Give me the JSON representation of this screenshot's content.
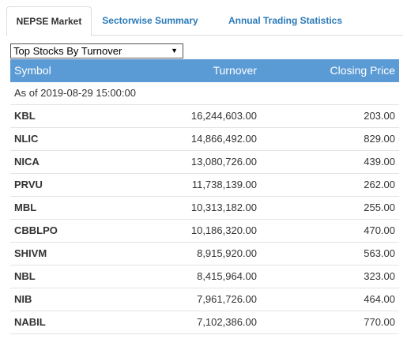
{
  "tabs": [
    {
      "label": "NEPSE Market",
      "active": true
    },
    {
      "label": "Sectorwise Summary",
      "active": false
    },
    {
      "label": "Annual Trading Statistics",
      "active": false
    }
  ],
  "filter": {
    "selected": "Top Stocks By Turnover"
  },
  "table": {
    "headers": {
      "symbol": "Symbol",
      "turnover": "Turnover",
      "closing": "Closing Price"
    },
    "as_of": "As of 2019-08-29 15:00:00",
    "rows": [
      {
        "symbol": "KBL",
        "turnover": "16,244,603.00",
        "closing": "203.00"
      },
      {
        "symbol": "NLIC",
        "turnover": "14,866,492.00",
        "closing": "829.00"
      },
      {
        "symbol": "NICA",
        "turnover": "13,080,726.00",
        "closing": "439.00"
      },
      {
        "symbol": "PRVU",
        "turnover": "11,738,139.00",
        "closing": "262.00"
      },
      {
        "symbol": "MBL",
        "turnover": "10,313,182.00",
        "closing": "255.00"
      },
      {
        "symbol": "CBBLPO",
        "turnover": "10,186,320.00",
        "closing": "470.00"
      },
      {
        "symbol": "SHIVM",
        "turnover": "8,915,920.00",
        "closing": "563.00"
      },
      {
        "symbol": "NBL",
        "turnover": "8,415,964.00",
        "closing": "323.00"
      },
      {
        "symbol": "NIB",
        "turnover": "7,961,726.00",
        "closing": "464.00"
      },
      {
        "symbol": "NABIL",
        "turnover": "7,102,386.00",
        "closing": "770.00"
      }
    ]
  },
  "colors": {
    "header_bg": "#5b9bd5",
    "tab_link": "#2a7ab8",
    "row_border": "#e3e3e3"
  }
}
